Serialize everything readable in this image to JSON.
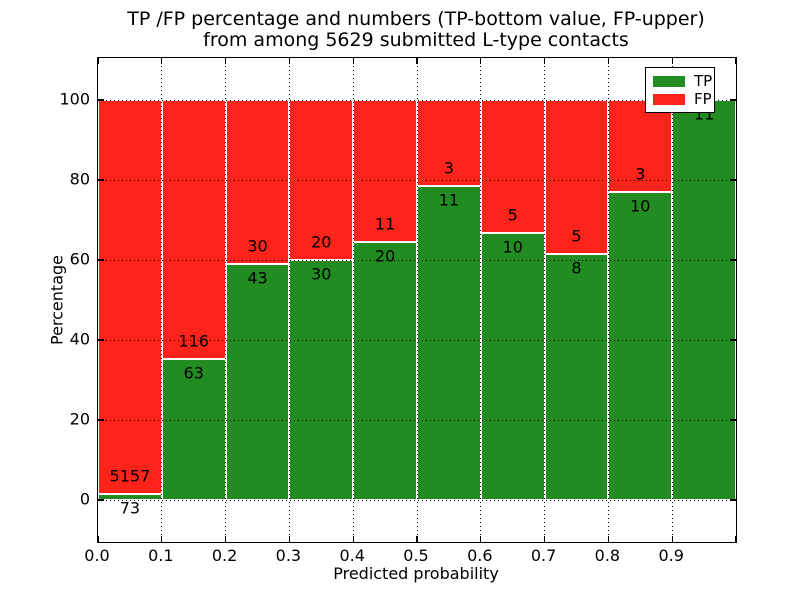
{
  "title": {
    "line1": "TP /FP percentage and numbers (TP-bottom value, FP-upper)",
    "line2": "from among 5629 submitted L-type contacts"
  },
  "chart_data": {
    "type": "bar",
    "stacked": true,
    "normalized_to": 100,
    "title": "TP /FP percentage and numbers (TP-bottom value, FP-upper) from among 5629 submitted L-type contacts",
    "xlabel": "Predicted probability",
    "ylabel": "Percentage",
    "bin_starts": [
      0.0,
      0.1,
      0.2,
      0.3,
      0.4,
      0.5,
      0.6,
      0.7,
      0.8,
      0.9
    ],
    "bin_width": 0.1,
    "series": [
      {
        "name": "TP",
        "color": "#228b22",
        "counts": [
          73,
          63,
          43,
          30,
          20,
          11,
          10,
          8,
          10,
          11
        ]
      },
      {
        "name": "FP",
        "color": "#fb231a",
        "counts": [
          5157,
          116,
          30,
          20,
          11,
          3,
          5,
          5,
          3,
          0
        ]
      }
    ],
    "tp_percent_of_bin": [
      1.4,
      35.2,
      58.9,
      60.0,
      64.5,
      78.6,
      66.7,
      61.5,
      76.9,
      100.0
    ],
    "total_submitted": 5629,
    "xticks": [
      "0.0",
      "0.1",
      "0.2",
      "0.3",
      "0.4",
      "0.5",
      "0.6",
      "0.7",
      "0.8",
      "0.9"
    ],
    "yticks": [
      0,
      20,
      40,
      60,
      80,
      100
    ],
    "xlim": [
      0.0,
      1.0
    ],
    "ylim": [
      -10.5,
      110.5
    ],
    "grid": "dotted, drawn above bars",
    "bar_edge_color": "#ffffff",
    "legend": {
      "position": "upper right",
      "entries": [
        {
          "label": "TP",
          "color": "#228b22"
        },
        {
          "label": "FP",
          "color": "#fb231a"
        }
      ]
    }
  }
}
